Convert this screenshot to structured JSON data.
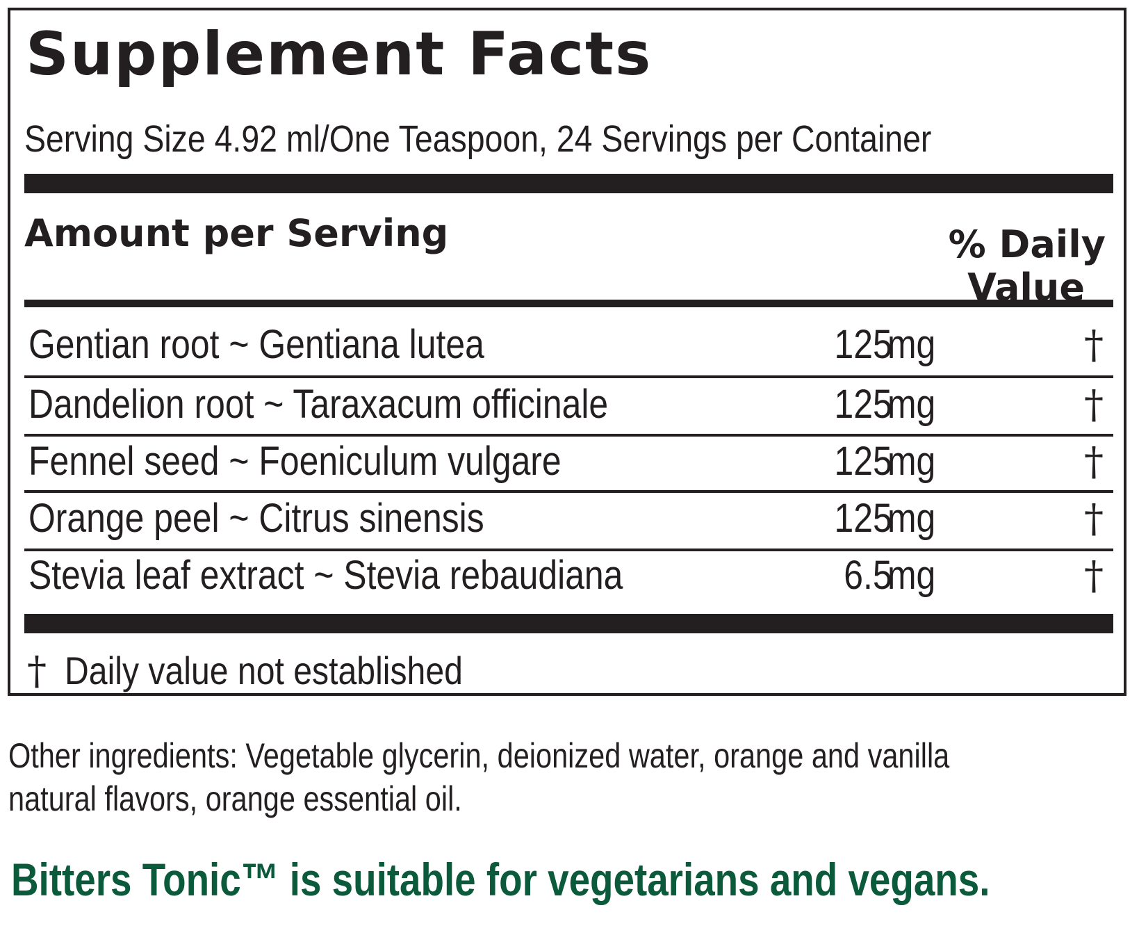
{
  "panel": {
    "title": "Supplement Facts",
    "serving": "Serving Size 4.92 ml/One Teaspoon, 24 Servings per Container",
    "amount_header": "Amount per Serving",
    "dv_header_line1": "% Daily",
    "dv_header_line2": "Value",
    "ingredients": [
      {
        "name": "Gentian root ~ Gentiana lutea",
        "amount": "125",
        "unit": "mg",
        "dv": "†"
      },
      {
        "name": "Dandelion root ~ Taraxacum officinale",
        "amount": "125",
        "unit": "mg",
        "dv": "†"
      },
      {
        "name": "Fennel seed ~ Foeniculum vulgare",
        "amount": "125",
        "unit": "mg",
        "dv": "†"
      },
      {
        "name": "Orange peel ~ Citrus sinensis",
        "amount": "125",
        "unit": "mg",
        "dv": "†"
      },
      {
        "name": "Stevia leaf extract ~ Stevia rebaudiana",
        "amount": "6.5",
        "unit": "mg",
        "dv": "†"
      }
    ],
    "footnote_symbol": "†",
    "footnote_text": "Daily value not established"
  },
  "other_ingredients": "Other ingredients: Vegetable glycerin, deionized water, orange and vanilla natural flavors, orange essential oil.",
  "vegan_statement": "Bitters Tonic™ is suitable for vegetarians and vegans.",
  "colors": {
    "text": "#231f20",
    "vegan_green": "#0b5a3c",
    "background": "#ffffff"
  }
}
